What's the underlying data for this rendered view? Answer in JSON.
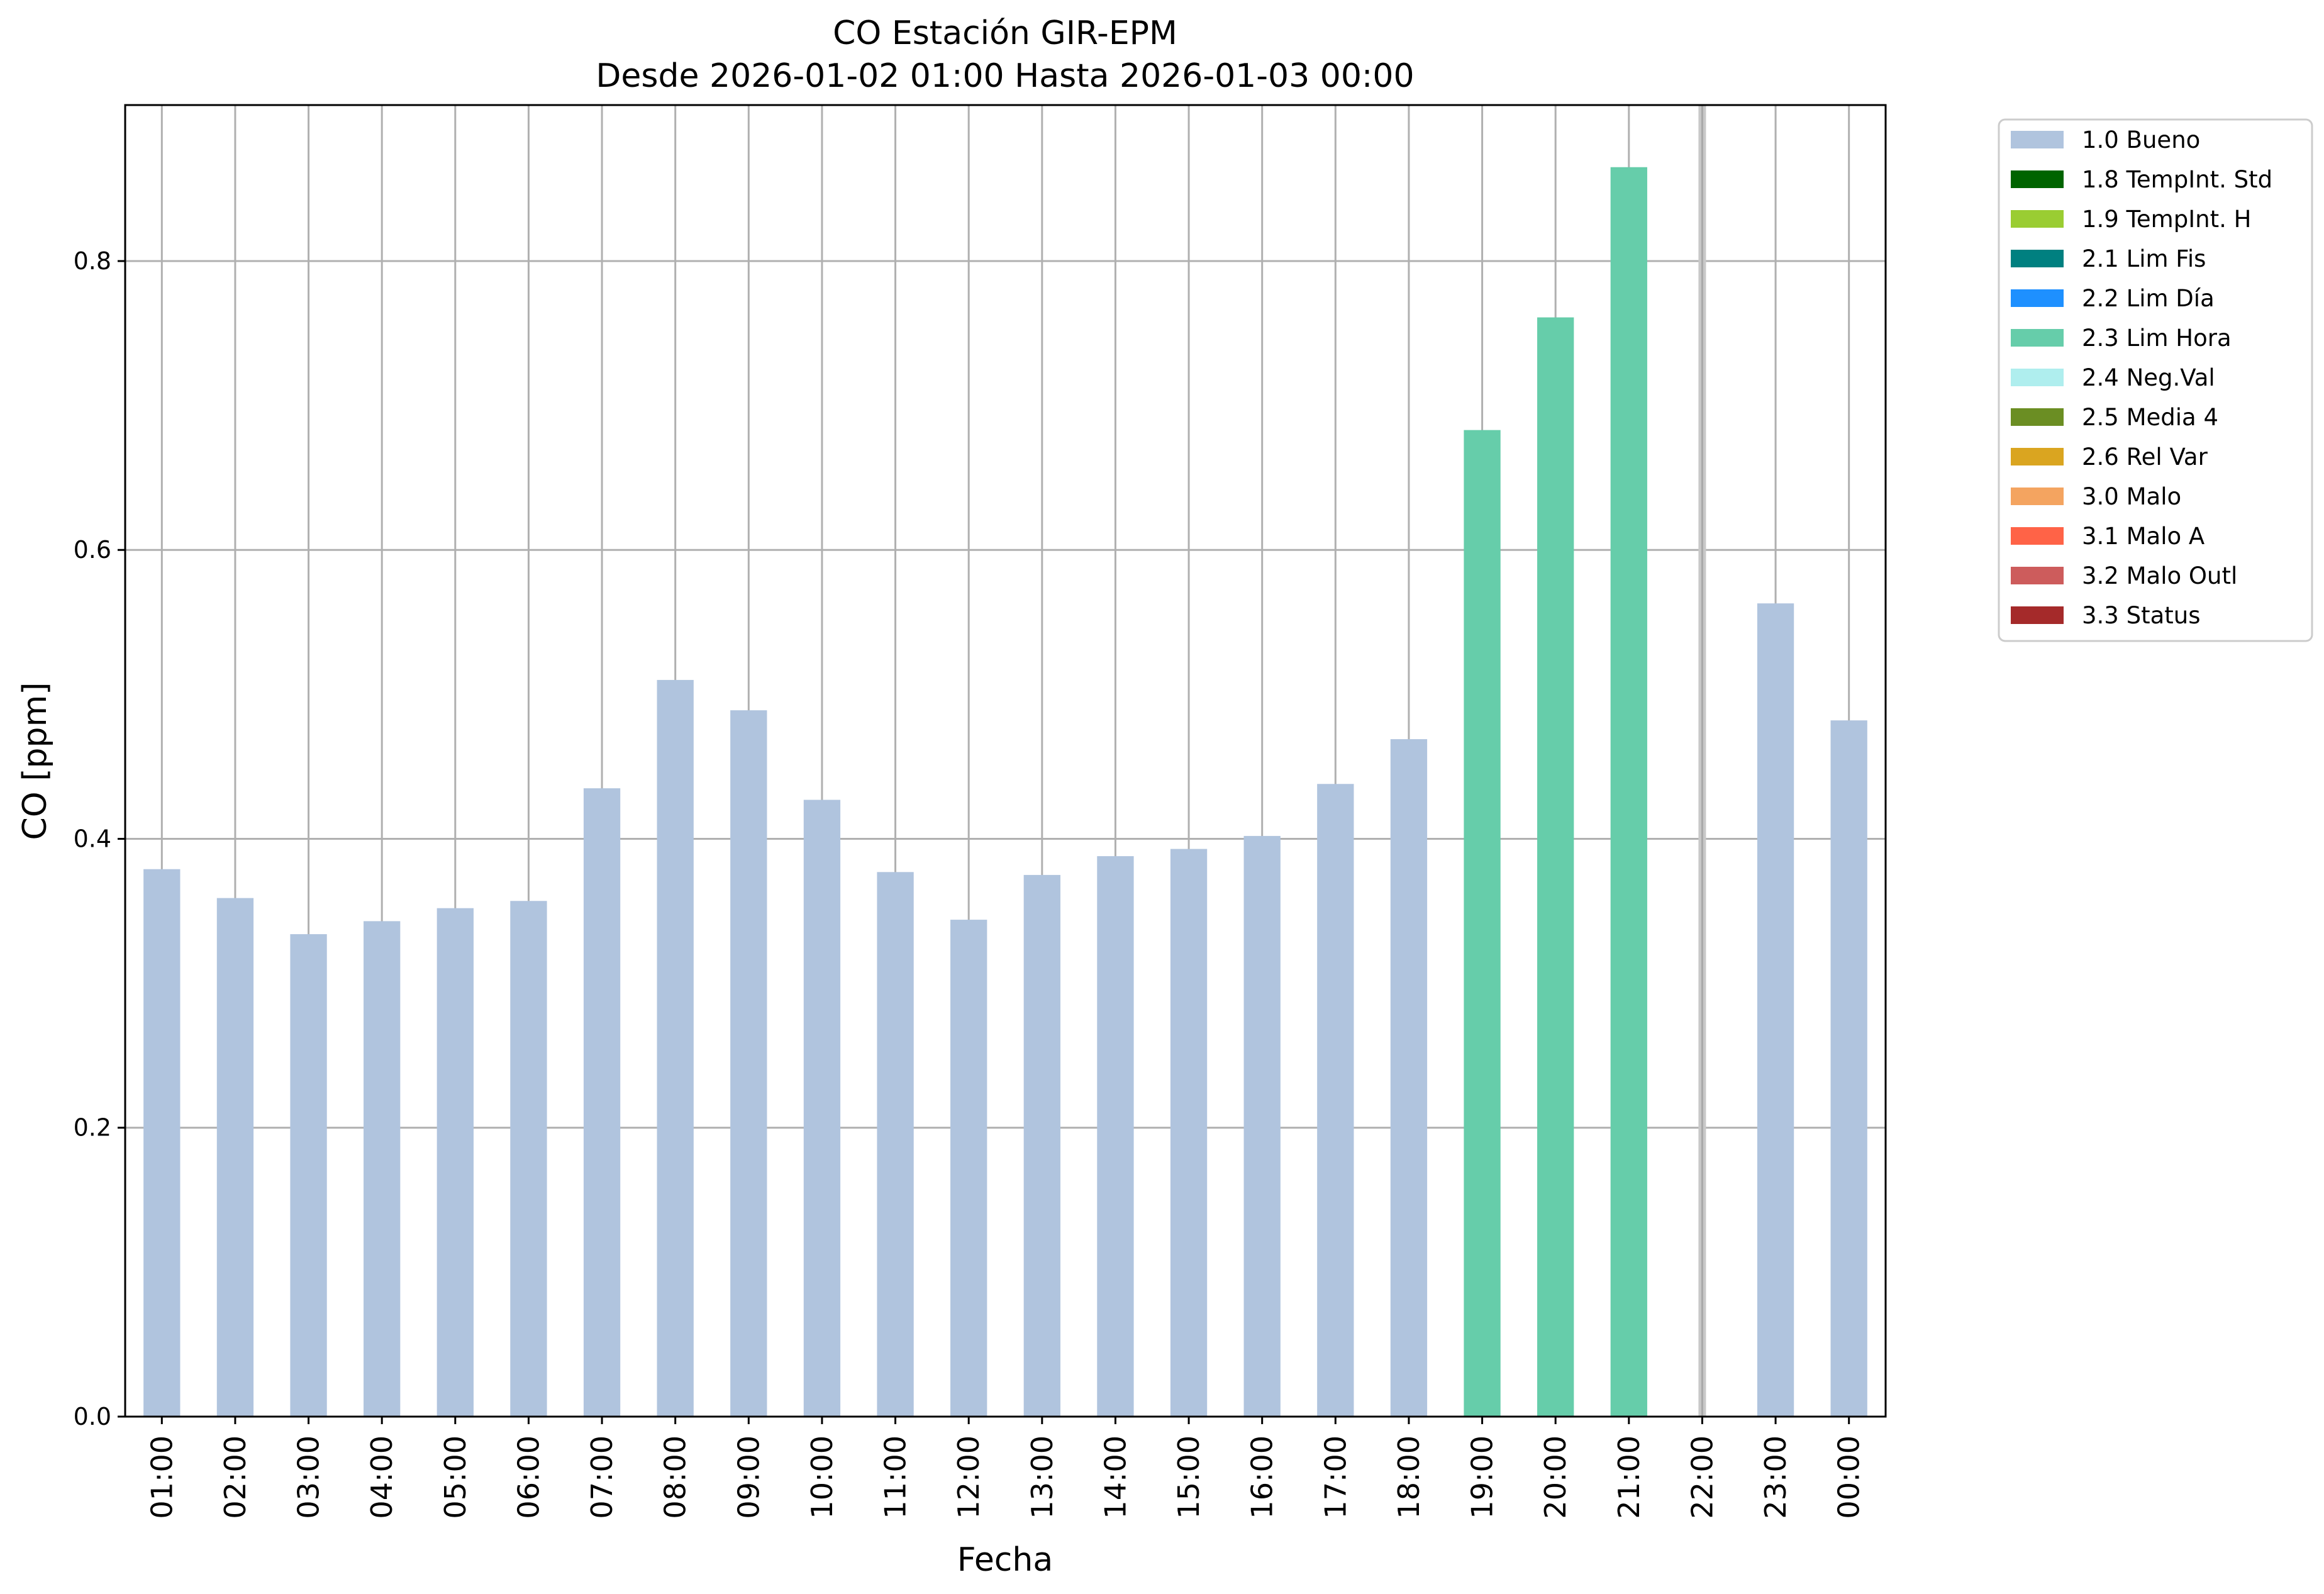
{
  "chart_data": {
    "type": "bar",
    "title": "CO Estación GIR-EPM",
    "subtitle": "Desde 2026-01-02 01:00 Hasta 2026-01-03 00:00",
    "xlabel": "Fecha",
    "ylabel": "CO [ppm]",
    "ylim": [
      0,
      0.908
    ],
    "yticks": [
      "0.0",
      "0.2",
      "0.4",
      "0.6",
      "0.8"
    ],
    "grid": true,
    "legend_position": "outside-right",
    "categories": [
      "01:00",
      "02:00",
      "03:00",
      "04:00",
      "05:00",
      "06:00",
      "07:00",
      "08:00",
      "09:00",
      "10:00",
      "11:00",
      "12:00",
      "13:00",
      "14:00",
      "15:00",
      "16:00",
      "17:00",
      "18:00",
      "19:00",
      "20:00",
      "21:00",
      "22:00",
      "23:00",
      "00:00"
    ],
    "values": [
      0.379,
      0.359,
      0.334,
      0.343,
      0.352,
      0.357,
      0.435,
      0.51,
      0.489,
      0.427,
      0.377,
      0.344,
      0.375,
      0.388,
      0.393,
      0.402,
      0.438,
      0.469,
      0.683,
      0.761,
      0.865,
      null,
      0.563,
      0.482
    ],
    "flags": [
      "1.0 Bueno",
      "1.0 Bueno",
      "1.0 Bueno",
      "1.0 Bueno",
      "1.0 Bueno",
      "1.0 Bueno",
      "1.0 Bueno",
      "1.0 Bueno",
      "1.0 Bueno",
      "1.0 Bueno",
      "1.0 Bueno",
      "1.0 Bueno",
      "1.0 Bueno",
      "1.0 Bueno",
      "1.0 Bueno",
      "1.0 Bueno",
      "1.0 Bueno",
      "1.0 Bueno",
      "2.3 Lim Hora",
      "2.3 Lim Hora",
      "2.3 Lim Hora",
      null,
      "1.0 Bueno",
      "1.0 Bueno"
    ],
    "missing_marker_category": "22:00",
    "legend": [
      {
        "label": "1.0 Bueno",
        "color": "#b0c4de"
      },
      {
        "label": "1.8 TempInt. Std",
        "color": "#006400"
      },
      {
        "label": "1.9 TempInt. H",
        "color": "#9acd32"
      },
      {
        "label": "2.1 Lim Fis",
        "color": "#008080"
      },
      {
        "label": "2.2 Lim Día",
        "color": "#1e90ff"
      },
      {
        "label": "2.3 Lim Hora",
        "color": "#66cdaa"
      },
      {
        "label": "2.4 Neg.Val",
        "color": "#afeeee"
      },
      {
        "label": "2.5 Media 4",
        "color": "#6b8e23"
      },
      {
        "label": "2.6 Rel Var",
        "color": "#daa520"
      },
      {
        "label": "3.0 Malo",
        "color": "#f4a460"
      },
      {
        "label": "3.1 Malo A",
        "color": "#ff6347"
      },
      {
        "label": "3.2 Malo Outl",
        "color": "#cd5c5c"
      },
      {
        "label": "3.3 Status",
        "color": "#a52a2a"
      }
    ]
  }
}
